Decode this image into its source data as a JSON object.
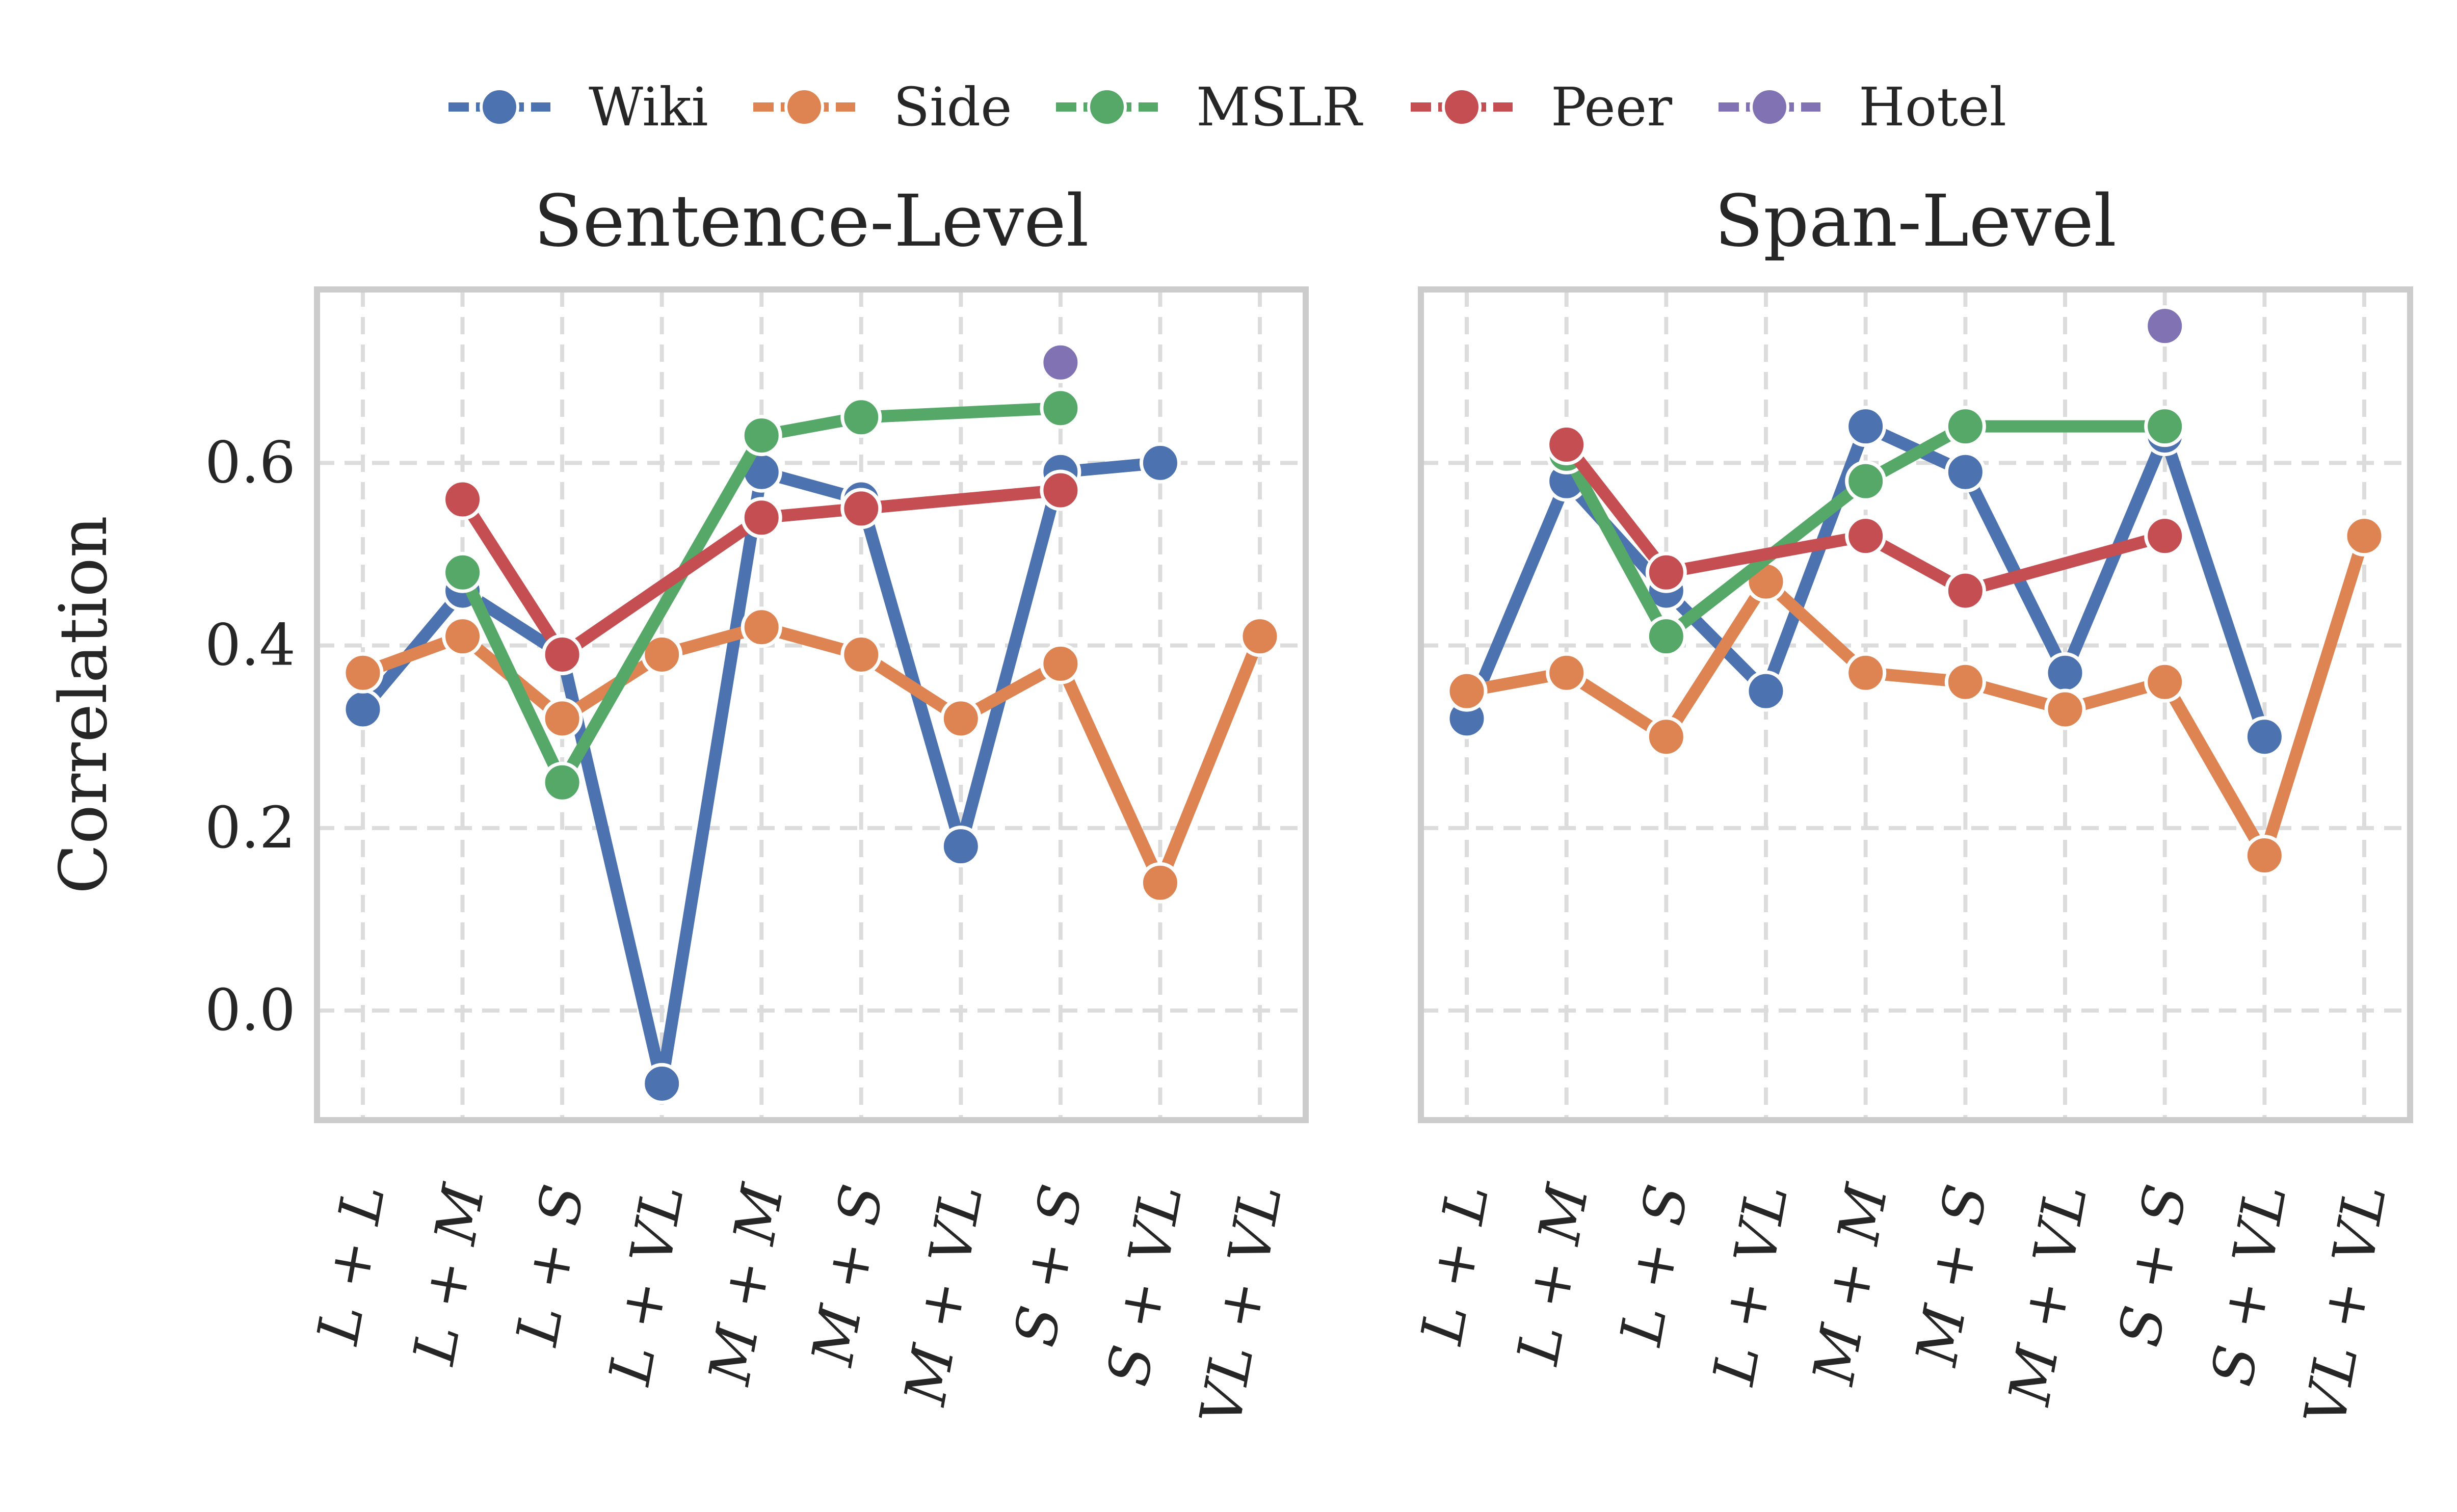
{
  "chart_data": {
    "type": "line",
    "ylabel": "Correlation",
    "ylim": [
      -0.12,
      0.79
    ],
    "yticks": [
      0.0,
      0.2,
      0.4,
      0.6
    ],
    "ytick_labels": [
      "0.0",
      "0.2",
      "0.4",
      "0.6"
    ],
    "categories": [
      "L + L",
      "L + M",
      "L + S",
      "L + VL",
      "M + M",
      "M + S",
      "M + VL",
      "S + S",
      "S + VL",
      "VL + VL"
    ],
    "colors": {
      "Wiki": "#4c72b0",
      "Side": "#dd8452",
      "MSLR": "#55a868",
      "Peer": "#c44e52",
      "Hotel": "#8172b3"
    },
    "legend": [
      "Wiki",
      "Side",
      "MSLR",
      "Peer",
      "Hotel"
    ],
    "panels": [
      {
        "title": "Sentence-Level",
        "series": [
          {
            "name": "Wiki",
            "values": [
              0.33,
              0.46,
              0.39,
              -0.08,
              0.59,
              0.56,
              0.18,
              0.59,
              0.6,
              null
            ]
          },
          {
            "name": "Side",
            "values": [
              0.37,
              0.41,
              0.32,
              0.39,
              0.42,
              0.39,
              0.32,
              0.38,
              0.14,
              0.41
            ]
          },
          {
            "name": "MSLR",
            "values": [
              null,
              0.48,
              0.25,
              null,
              0.63,
              0.65,
              null,
              0.66,
              null,
              null
            ]
          },
          {
            "name": "Peer",
            "values": [
              null,
              0.56,
              0.39,
              null,
              0.54,
              0.55,
              null,
              0.57,
              null,
              null
            ]
          },
          {
            "name": "Hotel",
            "values": [
              null,
              null,
              null,
              null,
              null,
              null,
              null,
              0.71,
              null,
              null
            ]
          }
        ]
      },
      {
        "title": "Span-Level",
        "series": [
          {
            "name": "Wiki",
            "values": [
              0.32,
              0.58,
              0.46,
              0.35,
              0.64,
              0.59,
              0.37,
              0.63,
              0.3,
              null
            ]
          },
          {
            "name": "Side",
            "values": [
              0.35,
              0.37,
              0.3,
              0.47,
              0.37,
              0.36,
              0.33,
              0.36,
              0.17,
              0.52
            ]
          },
          {
            "name": "MSLR",
            "values": [
              null,
              0.61,
              0.41,
              null,
              0.58,
              0.64,
              null,
              0.64,
              null,
              null
            ]
          },
          {
            "name": "Peer",
            "values": [
              null,
              0.62,
              0.48,
              null,
              0.52,
              0.46,
              null,
              0.52,
              null,
              null
            ]
          },
          {
            "name": "Hotel",
            "values": [
              null,
              null,
              null,
              null,
              null,
              null,
              null,
              0.75,
              null,
              null
            ]
          }
        ]
      }
    ]
  }
}
